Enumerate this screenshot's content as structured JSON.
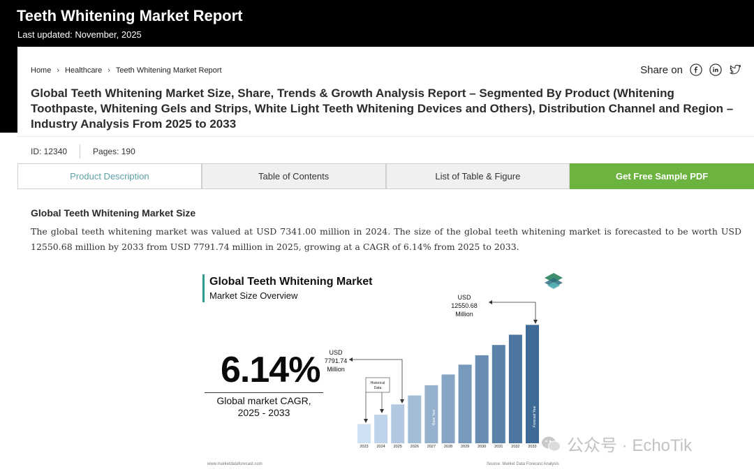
{
  "header": {
    "title": "Teeth Whitening Market Report",
    "updated": "Last updated: November, 2025"
  },
  "breadcrumb": [
    "Home",
    "Healthcare",
    "Teeth Whitening Market Report"
  ],
  "share_label": "Share on",
  "heading": "Global Teeth Whitening Market Size, Share, Trends & Growth Analysis Report – Segmented By Product (Whitening Toothpaste, Whitening Gels and Strips, White Light Teeth Whitening Devices and Others), Distribution Channel and Region – Industry Analysis From 2025 to 2033",
  "meta": {
    "id": "ID: 12340",
    "pages": "Pages: 190"
  },
  "tabs": [
    "Product Description",
    "Table of Contents",
    "List of Table & Figure",
    "Get Free Sample PDF"
  ],
  "section_title": "Global Teeth Whitening Market Size",
  "paragraph": "The global teeth whitening market was valued at USD 7341.00 million in 2024. The size of the global teeth whitening market is forecasted to be worth USD 12550.68 million by 2033 from USD 7791.74 million in 2025, growing at a CAGR of 6.14% from 2025 to 2033.",
  "infographic": {
    "title": "Global Teeth Whitening Market",
    "subtitle": "Market Size Overview",
    "cagr": "6.14%",
    "cagr_label_1": "Global market CAGR,",
    "cagr_label_2": "2025 - 2033",
    "callout_2025": [
      "USD",
      "7791.74",
      "Million"
    ],
    "callout_2033": [
      "USD",
      "12550.68",
      "Million"
    ],
    "historical_label": [
      "Historical",
      "Data"
    ],
    "base_year_label": "Base Year",
    "forecast_year_label": "Forecast Year",
    "footer_left": "www.marketdataforecast.com",
    "footer_right": "Source: Market Data Forecast Analysis"
  },
  "watermark": "公众号 · EchoTik",
  "colors": {
    "green": "#6cb33f",
    "teal": "#2f9c8f",
    "bar_light": "#cfe0f2",
    "bar_dark": "#3d6a96"
  },
  "chart_data": {
    "type": "bar",
    "categories": [
      "2023",
      "2024",
      "2025",
      "2026",
      "2027",
      "2028",
      "2029",
      "2030",
      "2031",
      "2032",
      "2033"
    ],
    "values": [
      4.3,
      6.4,
      8.7,
      10.7,
      13.0,
      15.4,
      17.6,
      19.7,
      22.0,
      24.3,
      26.5
    ]
  }
}
